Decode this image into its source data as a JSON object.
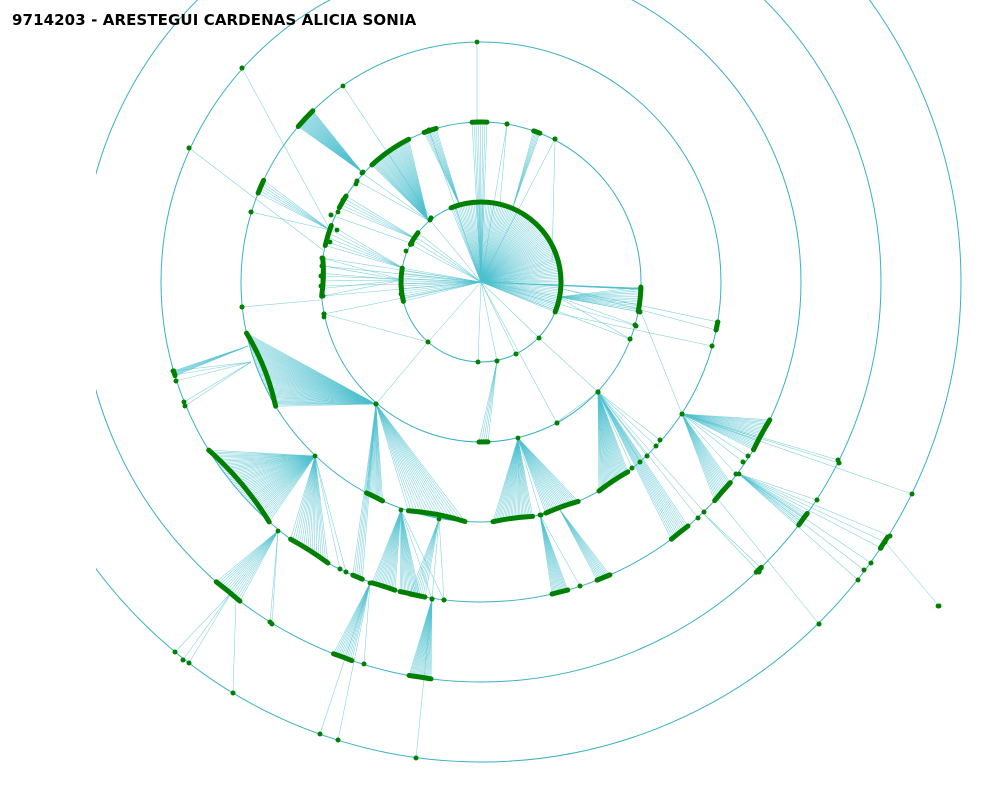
{
  "title": "9714203 - ARESTEGUI CARDENAS ALICIA SONIA",
  "colors": {
    "ring": "#3ab0c4",
    "link": "#4ec0cf",
    "node": "#008000"
  }
}
